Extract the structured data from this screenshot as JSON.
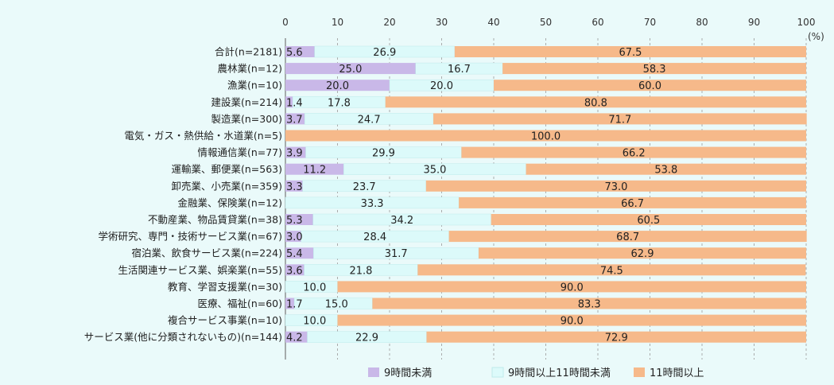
{
  "chart_data": {
    "type": "bar",
    "orientation": "horizontal",
    "stacked": true,
    "unit": "(%)",
    "xlim": [
      0,
      100
    ],
    "xticks": [
      "0",
      "10",
      "20",
      "30",
      "40",
      "50",
      "60",
      "70",
      "80",
      "90",
      "100"
    ],
    "grid": true,
    "legend_position": "bottom",
    "categories": [
      "合計(n=2181)",
      "農林業(n=12)",
      "漁業(n=10)",
      "建設業(n=214)",
      "製造業(n=300)",
      "電気・ガス・熱供給・水道業(n=5)",
      "情報通信業(n=77)",
      "運輸業、郵便業(n=563)",
      "卸売業、小売業(n=359)",
      "金融業、保険業(n=12)",
      "不動産業、物品賃貸業(n=38)",
      "学術研究、専門・技術サービス業(n=67)",
      "宿泊業、飲食サービス業(n=224)",
      "生活関連サービス業、娯楽業(n=55)",
      "教育、学習支援業(n=30)",
      "医療、福祉(n=60)",
      "複合サービス事業(n=10)",
      "サービス業(他に分類されないもの)(n=144)"
    ],
    "series": [
      {
        "name": "9時間未満",
        "color": "#c9b8e8",
        "values": [
          5.6,
          25.0,
          20.0,
          1.4,
          3.7,
          0,
          3.9,
          11.2,
          3.3,
          0,
          5.3,
          3.0,
          5.4,
          3.6,
          0,
          1.7,
          0,
          4.2
        ],
        "labels": [
          "5.6",
          "25.0",
          "20.0",
          "1.4",
          "3.7",
          "",
          "3.9",
          "11.2",
          "3.3",
          "",
          "5.3",
          "3.0",
          "5.4",
          "3.6",
          "",
          "1.7",
          "",
          "4.2"
        ]
      },
      {
        "name": "9時間以上11時間未満",
        "color": "#dcfafa",
        "values": [
          26.9,
          16.7,
          20.0,
          17.8,
          24.7,
          0,
          29.9,
          35.0,
          23.7,
          33.3,
          34.2,
          28.4,
          31.7,
          21.8,
          10.0,
          15.0,
          10.0,
          22.9
        ],
        "labels": [
          "26.9",
          "16.7",
          "20.0",
          "17.8",
          "24.7",
          "",
          "29.9",
          "35.0",
          "23.7",
          "33.3",
          "34.2",
          "28.4",
          "31.7",
          "21.8",
          "10.0",
          "15.0",
          "10.0",
          "22.9"
        ]
      },
      {
        "name": "11時間以上",
        "color": "#f6b98a",
        "values": [
          67.5,
          58.3,
          60.0,
          80.8,
          71.7,
          100.0,
          66.2,
          53.8,
          73.0,
          66.7,
          60.5,
          68.7,
          62.9,
          74.5,
          90.0,
          83.3,
          90.0,
          72.9
        ],
        "labels": [
          "67.5",
          "58.3",
          "60.0",
          "80.8",
          "71.7",
          "100.0",
          "66.2",
          "53.8",
          "73.0",
          "66.7",
          "60.5",
          "68.7",
          "62.9",
          "74.5",
          "90.0",
          "83.3",
          "90.0",
          "72.9"
        ]
      }
    ]
  }
}
